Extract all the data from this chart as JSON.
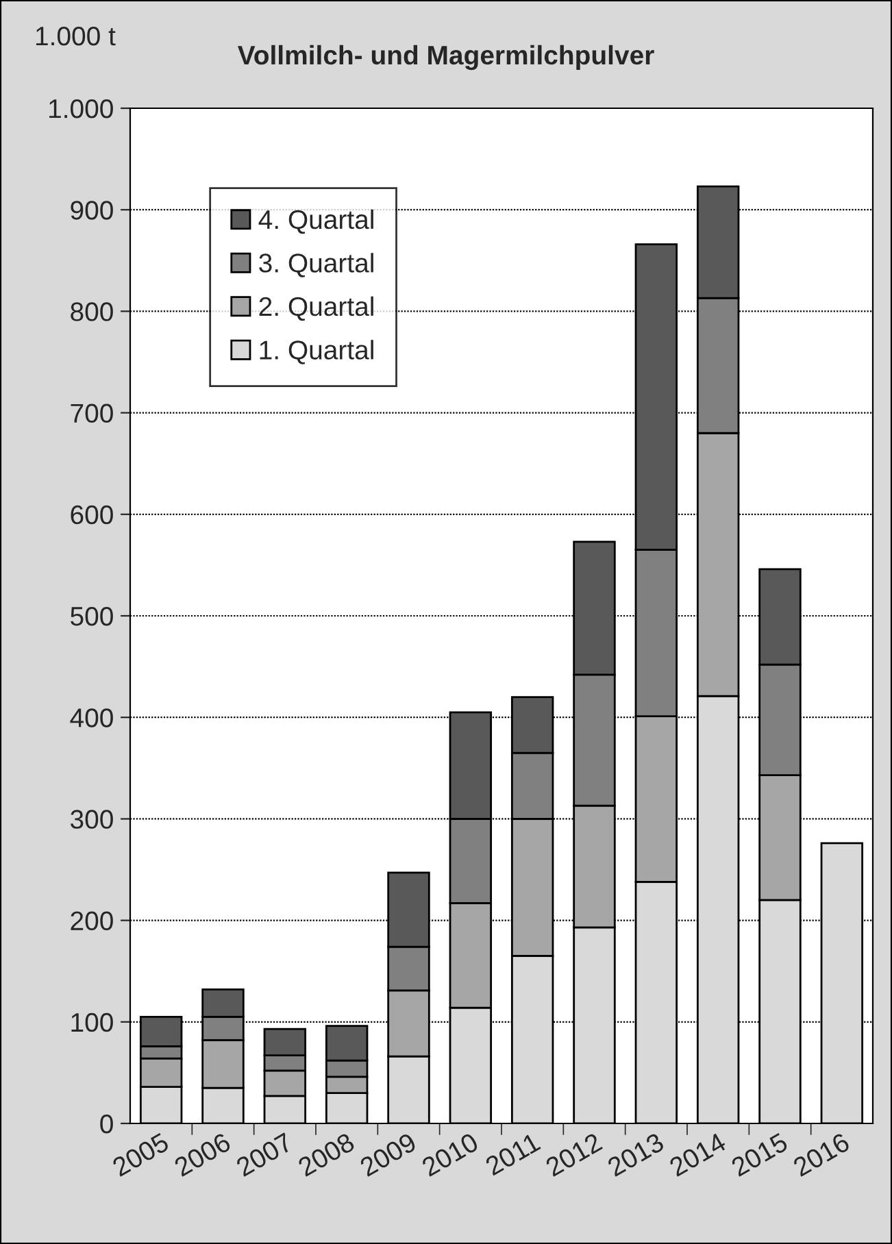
{
  "chart_data": {
    "type": "bar",
    "title": "Vollmilch- und Magermilchpulver",
    "ylabel": "1.000 t",
    "categories": [
      "2005",
      "2006",
      "2007",
      "2008",
      "2009",
      "2010",
      "2011",
      "2012",
      "2013",
      "2014",
      "2015",
      "2016"
    ],
    "stacked": true,
    "series": [
      {
        "name": "1. Quartal",
        "color": "#d9d9d9",
        "values": [
          36,
          35,
          27,
          30,
          66,
          114,
          165,
          193,
          238,
          421,
          220,
          276
        ]
      },
      {
        "name": "2. Quartal",
        "color": "#a6a6a6",
        "values": [
          28,
          47,
          25,
          16,
          65,
          103,
          135,
          120,
          163,
          259,
          123,
          null
        ]
      },
      {
        "name": "3. Quartal",
        "color": "#808080",
        "values": [
          12,
          23,
          15,
          16,
          43,
          83,
          65,
          129,
          164,
          133,
          109,
          null
        ]
      },
      {
        "name": "4. Quartal",
        "color": "#595959",
        "values": [
          29,
          27,
          26,
          34,
          73,
          105,
          55,
          131,
          301,
          110,
          94,
          null
        ]
      }
    ],
    "ylim": [
      0,
      1000
    ],
    "yticks": [
      0,
      100,
      200,
      300,
      400,
      500,
      600,
      700,
      800,
      900,
      {
        "value": 1000,
        "label": "1.000"
      }
    ],
    "grid": "y",
    "legend": "top left"
  }
}
